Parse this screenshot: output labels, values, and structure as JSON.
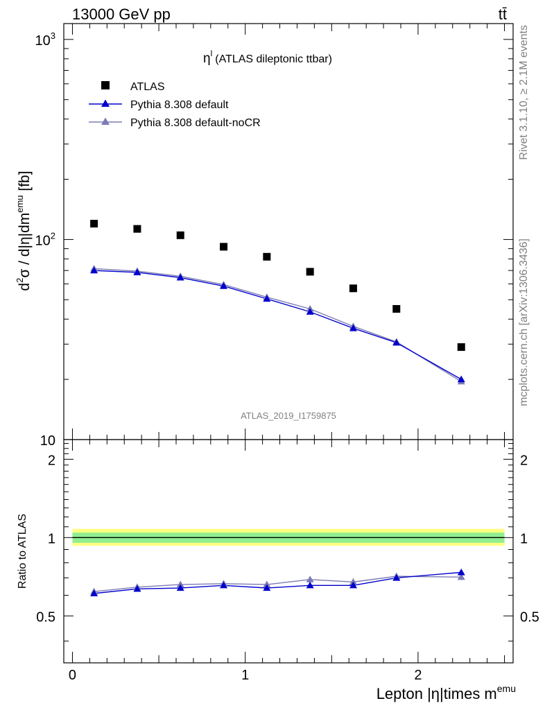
{
  "header": {
    "left": "13000 GeV pp",
    "right": "tt̄"
  },
  "side_text": {
    "rivet": "Rivet 3.1.10, ≥ 2.1M events",
    "mcplots": "mcplots.cern.ch [arXiv:1306.3436]"
  },
  "chart_data": [
    {
      "type": "scatter",
      "title_symbol": "η",
      "title_sup": "l",
      "title": "(ATLAS dileptonic ttbar)",
      "watermark": "ATLAS_2019_I1759875",
      "ylabel": "d²σ / d|η|dmᵉᵐᵘ [fb]",
      "ylabel_parts": {
        "d": "d",
        "sup2": "2",
        "main": "σ / d|η|dm",
        "supemu": "emu",
        "unit": " [fb]"
      },
      "yscale": "log",
      "ylim": [
        10,
        1200
      ],
      "xlim": [
        -0.05,
        2.55
      ],
      "yticks": [
        {
          "value": 10,
          "base": "10",
          "exp": ""
        },
        {
          "value": 100,
          "base": "10",
          "exp": "2"
        },
        {
          "value": 1000,
          "base": "10",
          "exp": "3"
        }
      ],
      "legend_position": "top-left",
      "x": [
        0.125,
        0.375,
        0.625,
        0.875,
        1.125,
        1.375,
        1.625,
        1.875,
        2.25
      ],
      "series": [
        {
          "name": "ATLAS",
          "marker": "square",
          "color": "#000000",
          "values": [
            120,
            113,
            105,
            92,
            82,
            69,
            57,
            45,
            29
          ]
        },
        {
          "name": "Pythia 8.308 default",
          "marker": "triangle",
          "color": "#0000cc",
          "values": [
            70,
            68.5,
            64.5,
            58.5,
            50.5,
            43.5,
            36,
            30.5,
            20
          ]
        },
        {
          "name": "Pythia 8.308 default-noCR",
          "marker": "triangle",
          "color": "#7b7bb5",
          "values": [
            71.5,
            69.5,
            65.5,
            59.5,
            51.5,
            45,
            36.8,
            30.8,
            19.5
          ]
        }
      ]
    },
    {
      "type": "line",
      "ylabel": "Ratio to ATLAS",
      "xlabel": "Lepton |η|times m",
      "xlabel_sup": "emu",
      "ylim": [
        0.33,
        2.38
      ],
      "xlim": [
        -0.05,
        2.55
      ],
      "xticks": [
        "0",
        "1",
        "2"
      ],
      "yticks": [
        "0.5",
        "1",
        "2"
      ],
      "band_color_outer": "#ffff80",
      "band_color_inner": "#90ee90",
      "x": [
        0.125,
        0.375,
        0.625,
        0.875,
        1.125,
        1.375,
        1.625,
        1.875,
        2.25
      ],
      "series": [
        {
          "name": "Pythia 8.308 default",
          "color": "#0000cc",
          "values": [
            0.61,
            0.635,
            0.64,
            0.655,
            0.64,
            0.655,
            0.655,
            0.7,
            0.735
          ]
        },
        {
          "name": "Pythia 8.308 default-noCR",
          "color": "#7b7bb5",
          "values": [
            0.62,
            0.645,
            0.66,
            0.665,
            0.66,
            0.69,
            0.675,
            0.71,
            0.705
          ]
        }
      ]
    }
  ]
}
